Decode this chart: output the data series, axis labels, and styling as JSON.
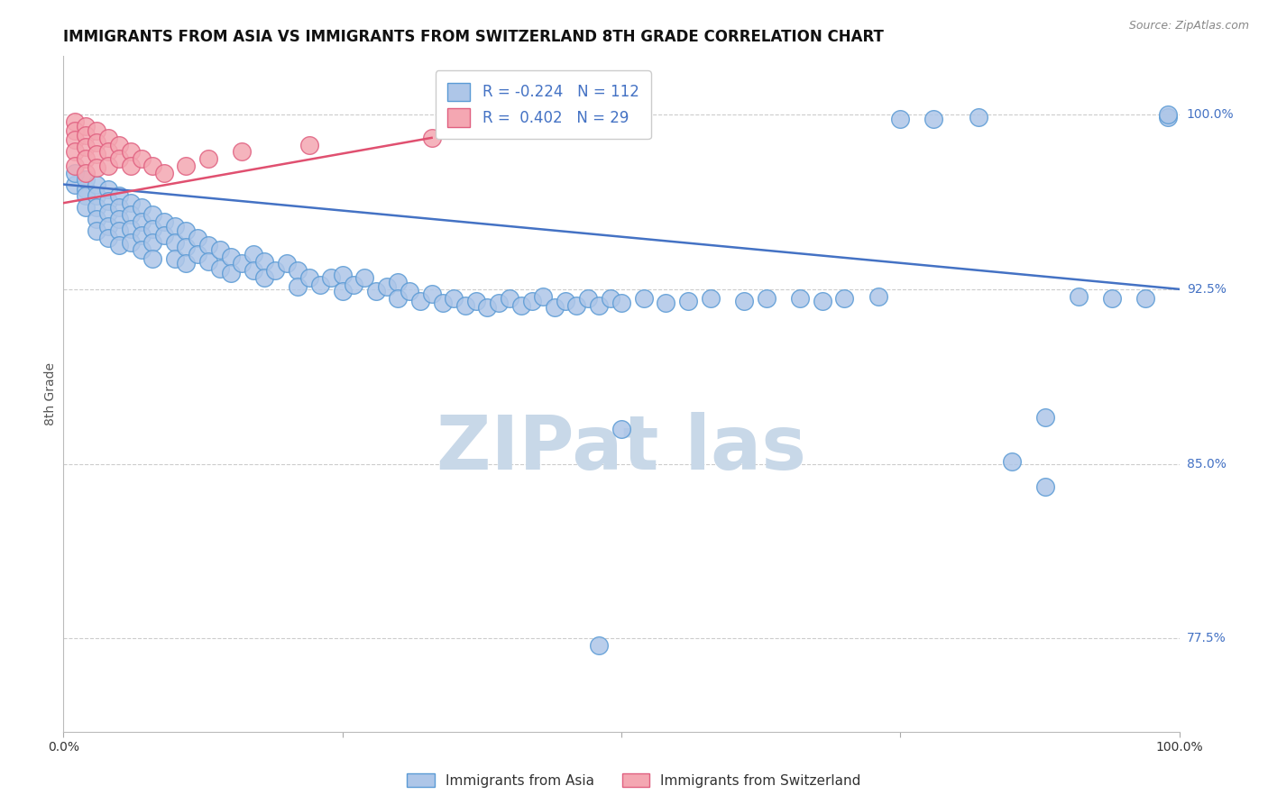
{
  "title": "IMMIGRANTS FROM ASIA VS IMMIGRANTS FROM SWITZERLAND 8TH GRADE CORRELATION CHART",
  "source": "Source: ZipAtlas.com",
  "ylabel": "8th Grade",
  "legend_blue_r": "-0.224",
  "legend_blue_n": "112",
  "legend_pink_r": "0.402",
  "legend_pink_n": "29",
  "right_yticks": [
    0.775,
    0.85,
    0.925,
    1.0
  ],
  "right_ytick_labels": [
    "77.5%",
    "85.0%",
    "92.5%",
    "100.0%"
  ],
  "xmin": 0.0,
  "xmax": 1.0,
  "ymin": 0.735,
  "ymax": 1.025,
  "blue_scatter_x": [
    0.01,
    0.01,
    0.02,
    0.02,
    0.02,
    0.02,
    0.03,
    0.03,
    0.03,
    0.03,
    0.03,
    0.04,
    0.04,
    0.04,
    0.04,
    0.04,
    0.05,
    0.05,
    0.05,
    0.05,
    0.05,
    0.06,
    0.06,
    0.06,
    0.06,
    0.07,
    0.07,
    0.07,
    0.07,
    0.08,
    0.08,
    0.08,
    0.08,
    0.09,
    0.09,
    0.1,
    0.1,
    0.1,
    0.11,
    0.11,
    0.11,
    0.12,
    0.12,
    0.13,
    0.13,
    0.14,
    0.14,
    0.15,
    0.15,
    0.16,
    0.17,
    0.17,
    0.18,
    0.18,
    0.19,
    0.2,
    0.21,
    0.21,
    0.22,
    0.23,
    0.24,
    0.25,
    0.25,
    0.26,
    0.27,
    0.28,
    0.29,
    0.3,
    0.3,
    0.31,
    0.32,
    0.33,
    0.34,
    0.35,
    0.36,
    0.37,
    0.38,
    0.39,
    0.4,
    0.41,
    0.42,
    0.43,
    0.44,
    0.45,
    0.46,
    0.47,
    0.48,
    0.49,
    0.5,
    0.52,
    0.54,
    0.56,
    0.58,
    0.61,
    0.63,
    0.66,
    0.68,
    0.7,
    0.73,
    0.75,
    0.78,
    0.82,
    0.85,
    0.88,
    0.91,
    0.94,
    0.97,
    0.99,
    0.99,
    0.5,
    0.88,
    0.48
  ],
  "blue_scatter_y": [
    0.97,
    0.975,
    0.968,
    0.972,
    0.965,
    0.96,
    0.97,
    0.965,
    0.96,
    0.955,
    0.95,
    0.968,
    0.963,
    0.958,
    0.952,
    0.947,
    0.965,
    0.96,
    0.955,
    0.95,
    0.944,
    0.962,
    0.957,
    0.951,
    0.945,
    0.96,
    0.954,
    0.948,
    0.942,
    0.957,
    0.951,
    0.945,
    0.938,
    0.954,
    0.948,
    0.952,
    0.945,
    0.938,
    0.95,
    0.943,
    0.936,
    0.947,
    0.94,
    0.944,
    0.937,
    0.942,
    0.934,
    0.939,
    0.932,
    0.936,
    0.94,
    0.933,
    0.937,
    0.93,
    0.933,
    0.936,
    0.933,
    0.926,
    0.93,
    0.927,
    0.93,
    0.931,
    0.924,
    0.927,
    0.93,
    0.924,
    0.926,
    0.928,
    0.921,
    0.924,
    0.92,
    0.923,
    0.919,
    0.921,
    0.918,
    0.92,
    0.917,
    0.919,
    0.921,
    0.918,
    0.92,
    0.922,
    0.917,
    0.92,
    0.918,
    0.921,
    0.918,
    0.921,
    0.919,
    0.921,
    0.919,
    0.92,
    0.921,
    0.92,
    0.921,
    0.921,
    0.92,
    0.921,
    0.922,
    0.998,
    0.998,
    0.999,
    0.851,
    0.87,
    0.922,
    0.921,
    0.921,
    0.999,
    1.0,
    0.865,
    0.84,
    0.772
  ],
  "pink_scatter_x": [
    0.01,
    0.01,
    0.01,
    0.01,
    0.01,
    0.02,
    0.02,
    0.02,
    0.02,
    0.02,
    0.03,
    0.03,
    0.03,
    0.03,
    0.04,
    0.04,
    0.04,
    0.05,
    0.05,
    0.06,
    0.06,
    0.07,
    0.08,
    0.09,
    0.11,
    0.13,
    0.16,
    0.22,
    0.33
  ],
  "pink_scatter_y": [
    0.997,
    0.993,
    0.989,
    0.984,
    0.978,
    0.995,
    0.991,
    0.986,
    0.981,
    0.975,
    0.993,
    0.988,
    0.983,
    0.977,
    0.99,
    0.984,
    0.978,
    0.987,
    0.981,
    0.984,
    0.978,
    0.981,
    0.978,
    0.975,
    0.978,
    0.981,
    0.984,
    0.987,
    0.99
  ],
  "blue_line_x": [
    0.0,
    1.0
  ],
  "blue_line_y": [
    0.97,
    0.925
  ],
  "pink_line_x": [
    0.0,
    0.33
  ],
  "pink_line_y": [
    0.962,
    0.99
  ],
  "blue_fill_color": "#AEC6E8",
  "blue_edge_color": "#5B9BD5",
  "pink_fill_color": "#F4A7B2",
  "pink_edge_color": "#E06080",
  "blue_line_color": "#4472C4",
  "pink_line_color": "#E05070",
  "scatter_size": 200,
  "title_fontsize": 12,
  "axis_label_fontsize": 10,
  "tick_fontsize": 10,
  "legend_fontsize": 12,
  "watermark_text": "ZIPat las",
  "watermark_color": "#C8D8E8",
  "bg_color": "#FFFFFF",
  "grid_color": "#CCCCCC"
}
